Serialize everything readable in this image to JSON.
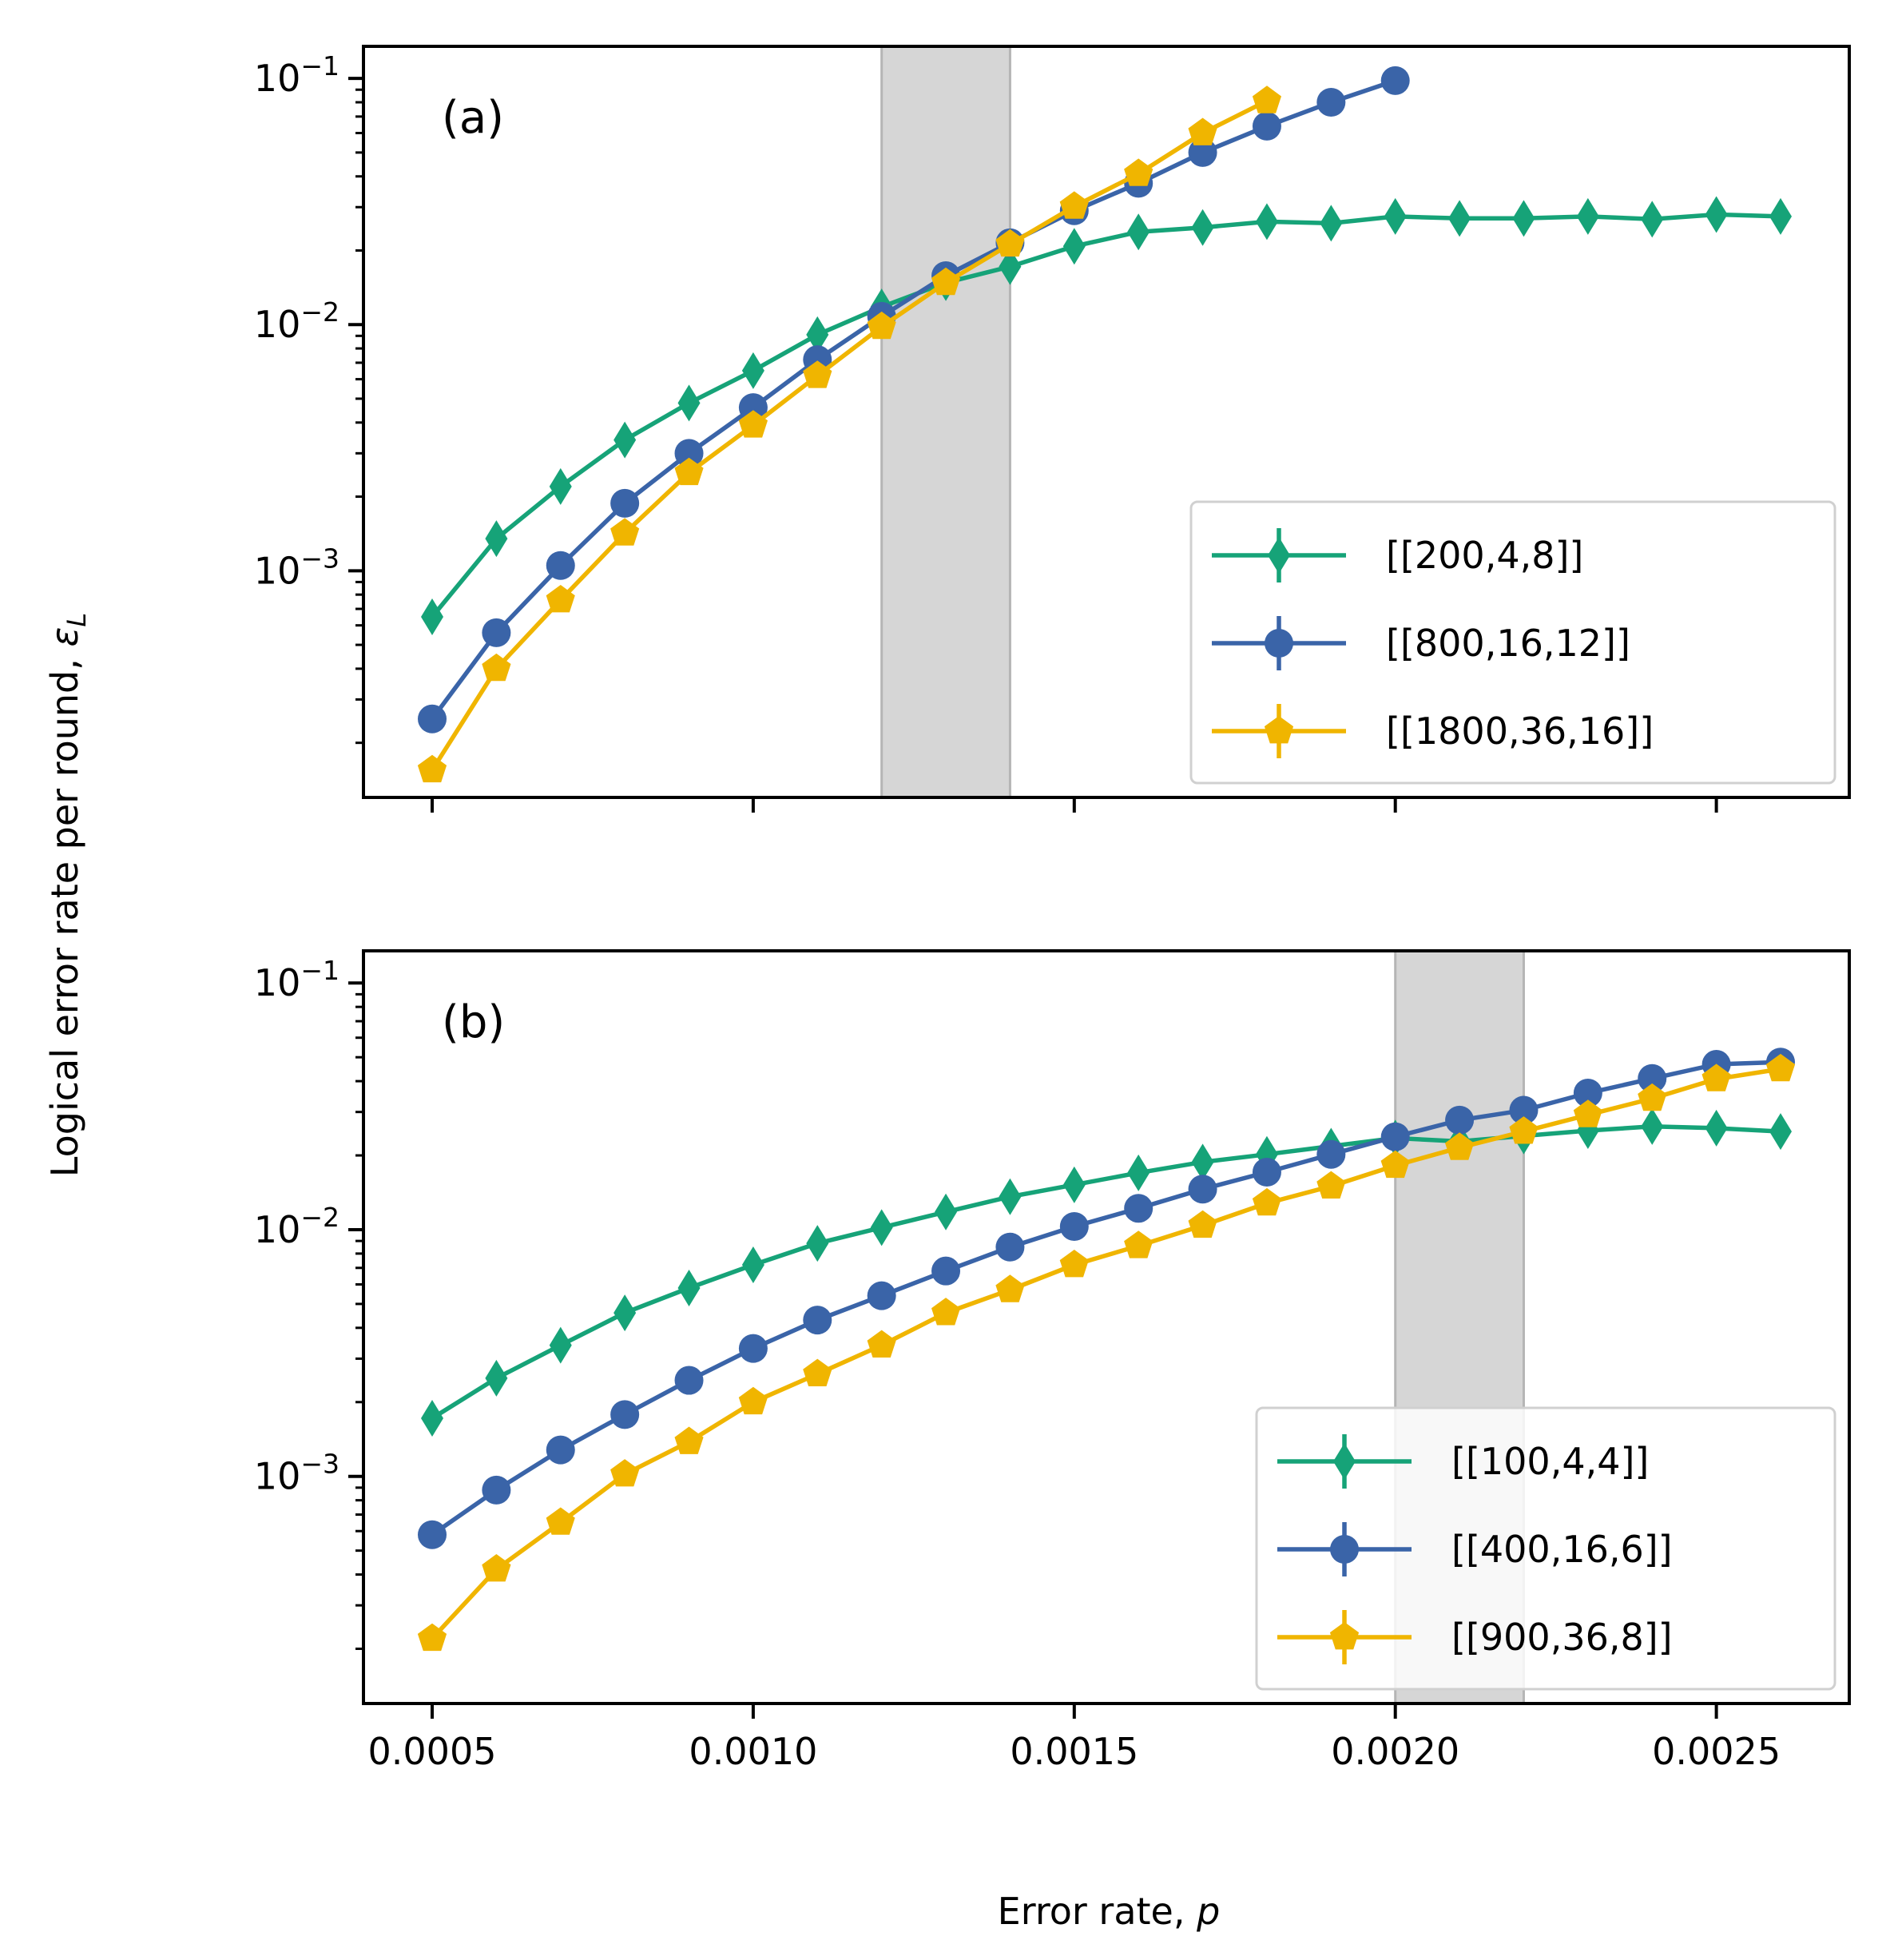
{
  "figure": {
    "ylabel": "Logical error rate per round, ",
    "ylabel_symbol": "ε",
    "ylabel_subscript": "L",
    "xlabel": "Error rate, ",
    "xlabel_symbol": "p"
  },
  "colors": {
    "green": "#16a378",
    "blue": "#3a64a8",
    "yellow": "#f0b500",
    "band": "#d6d6d6"
  },
  "chart_data": [
    {
      "type": "line",
      "panel_label": "(a)",
      "yscale": "log",
      "xlim": [
        0.000393,
        0.002707
      ],
      "ylim": [
        0.00012,
        0.135
      ],
      "x_ticks": [
        0.0005,
        0.001,
        0.0015,
        0.002,
        0.0025
      ],
      "show_x_tick_labels": false,
      "y_major_ticks": [
        {
          "mantissa": "10",
          "exponent": "−3",
          "value": 0.001
        },
        {
          "mantissa": "10",
          "exponent": "−2",
          "value": 0.01
        },
        {
          "mantissa": "10",
          "exponent": "−1",
          "value": 0.1
        }
      ],
      "threshold_band": [
        0.0012,
        0.0014
      ],
      "legend_position": "lower-right",
      "series": [
        {
          "name": "[[200,4,8]]",
          "color": "green",
          "marker": "diamond",
          "x": [
            0.0005,
            0.0006,
            0.0007,
            0.0008,
            0.0009,
            0.001,
            0.0011,
            0.0012,
            0.0013,
            0.0014,
            0.0015,
            0.0016,
            0.0017,
            0.0018,
            0.0019,
            0.002,
            0.0021,
            0.0022,
            0.0023,
            0.0024,
            0.0025,
            0.0026
          ],
          "y": [
            0.00065,
            0.00135,
            0.0022,
            0.0034,
            0.0048,
            0.0065,
            0.0091,
            0.0118,
            0.0148,
            0.0172,
            0.0208,
            0.0238,
            0.0248,
            0.0262,
            0.0258,
            0.0275,
            0.027,
            0.027,
            0.0275,
            0.0268,
            0.028,
            0.0275
          ]
        },
        {
          "name": "[[800,16,12]]",
          "color": "blue",
          "marker": "circle",
          "x": [
            0.0005,
            0.0006,
            0.0007,
            0.0008,
            0.0009,
            0.001,
            0.0011,
            0.0012,
            0.0013,
            0.0014,
            0.0015,
            0.0016,
            0.0017,
            0.0018,
            0.0019,
            0.002
          ],
          "y": [
            0.00025,
            0.00056,
            0.00105,
            0.00188,
            0.003,
            0.0046,
            0.0072,
            0.0108,
            0.0158,
            0.0215,
            0.029,
            0.0375,
            0.05,
            0.064,
            0.08,
            0.098
          ]
        },
        {
          "name": "[[1800,36,16]]",
          "color": "yellow",
          "marker": "pentagon",
          "x": [
            0.0005,
            0.0006,
            0.0007,
            0.0008,
            0.0009,
            0.001,
            0.0011,
            0.0012,
            0.0013,
            0.0014,
            0.0015,
            0.0016,
            0.0017,
            0.0018
          ],
          "y": [
            0.000155,
            0.0004,
            0.00076,
            0.00142,
            0.0025,
            0.0039,
            0.0062,
            0.0098,
            0.0148,
            0.0212,
            0.0302,
            0.041,
            0.06,
            0.081
          ]
        }
      ]
    },
    {
      "type": "line",
      "panel_label": "(b)",
      "yscale": "log",
      "xlim": [
        0.000393,
        0.002707
      ],
      "ylim": [
        0.00012,
        0.135
      ],
      "x_ticks": [
        0.0005,
        0.001,
        0.0015,
        0.002,
        0.0025
      ],
      "x_tick_labels": [
        "0.0005",
        "0.0010",
        "0.0015",
        "0.0020",
        "0.0025"
      ],
      "show_x_tick_labels": true,
      "y_major_ticks": [
        {
          "mantissa": "10",
          "exponent": "−3",
          "value": 0.001
        },
        {
          "mantissa": "10",
          "exponent": "−2",
          "value": 0.01
        },
        {
          "mantissa": "10",
          "exponent": "−1",
          "value": 0.1
        }
      ],
      "threshold_band": [
        0.002,
        0.0022
      ],
      "legend_position": "lower-right",
      "series": [
        {
          "name": "[[100,4,4]]",
          "color": "green",
          "marker": "diamond",
          "x": [
            0.0005,
            0.0006,
            0.0007,
            0.0008,
            0.0009,
            0.001,
            0.0011,
            0.0012,
            0.0013,
            0.0014,
            0.0015,
            0.0016,
            0.0017,
            0.0018,
            0.0019,
            0.002,
            0.0021,
            0.0022,
            0.0023,
            0.0024,
            0.0025,
            0.0026
          ],
          "y": [
            0.00172,
            0.0025,
            0.0034,
            0.0046,
            0.0058,
            0.0072,
            0.0088,
            0.0102,
            0.0118,
            0.0136,
            0.0152,
            0.017,
            0.0188,
            0.0202,
            0.0218,
            0.0235,
            0.0228,
            0.024,
            0.0252,
            0.0262,
            0.0258,
            0.025
          ]
        },
        {
          "name": "[[400,16,6]]",
          "color": "blue",
          "marker": "circle",
          "x": [
            0.0005,
            0.0006,
            0.0007,
            0.0008,
            0.0009,
            0.001,
            0.0011,
            0.0012,
            0.0013,
            0.0014,
            0.0015,
            0.0016,
            0.0017,
            0.0018,
            0.0019,
            0.002,
            0.0021,
            0.0022,
            0.0023,
            0.0024,
            0.0025,
            0.0026
          ],
          "y": [
            0.00058,
            0.00088,
            0.00128,
            0.00178,
            0.00245,
            0.0033,
            0.0043,
            0.0054,
            0.0068,
            0.0085,
            0.0103,
            0.0122,
            0.0146,
            0.0171,
            0.0202,
            0.0238,
            0.0278,
            0.0305,
            0.0358,
            0.041,
            0.0468,
            0.0478
          ]
        },
        {
          "name": "[[900,36,8]]",
          "color": "yellow",
          "marker": "pentagon",
          "x": [
            0.0005,
            0.0006,
            0.0007,
            0.0008,
            0.0009,
            0.001,
            0.0011,
            0.0012,
            0.0013,
            0.0014,
            0.0015,
            0.0016,
            0.0017,
            0.0018,
            0.0019,
            0.002,
            0.0021,
            0.0022,
            0.0023,
            0.0024,
            0.0025,
            0.0026
          ],
          "y": [
            0.00022,
            0.00042,
            0.00065,
            0.00102,
            0.00138,
            0.002,
            0.0026,
            0.0034,
            0.0046,
            0.0057,
            0.0072,
            0.0086,
            0.0104,
            0.0128,
            0.015,
            0.0182,
            0.0215,
            0.025,
            0.0292,
            0.034,
            0.0408,
            0.0448
          ]
        }
      ]
    }
  ]
}
